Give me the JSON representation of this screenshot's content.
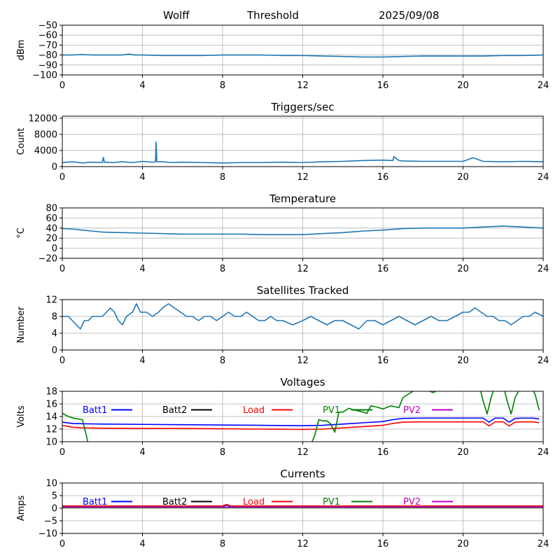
{
  "header": {
    "station": "Wolff",
    "mode": "Threshold",
    "date": "2025/09/08"
  },
  "chart_data": [
    {
      "id": "threshold",
      "type": "line",
      "title": "",
      "ylabel": "dBm",
      "xlim": [
        0,
        24
      ],
      "ylim": [
        -100,
        -50
      ],
      "xticks": [
        0,
        4,
        8,
        12,
        16,
        20,
        24
      ],
      "yticks": [
        -100,
        -90,
        -80,
        -70,
        -60,
        -50
      ],
      "ytick_labels": [
        "−100",
        "−90",
        "−80",
        "−70",
        "−60",
        "−50"
      ],
      "grid": true,
      "series": [
        {
          "color": "#1f77b4",
          "x": [
            0,
            0.5,
            1,
            1.5,
            2,
            2.5,
            3,
            3.3,
            3.6,
            4,
            5,
            6,
            7,
            8,
            9,
            10,
            11,
            12,
            13,
            14,
            15,
            16,
            17,
            18,
            19,
            20,
            21,
            22,
            23,
            24
          ],
          "y": [
            -80,
            -80,
            -79.5,
            -80,
            -80,
            -80,
            -80,
            -79,
            -80,
            -80,
            -80.5,
            -80.5,
            -80.5,
            -80,
            -80,
            -80,
            -80.5,
            -80.5,
            -81,
            -81.5,
            -82,
            -82,
            -81.5,
            -81,
            -81,
            -81,
            -81,
            -80.5,
            -80.5,
            -80
          ]
        }
      ]
    },
    {
      "id": "triggers",
      "type": "line",
      "title": "Triggers/sec",
      "ylabel": "Count",
      "xlim": [
        0,
        24
      ],
      "ylim": [
        0,
        12500
      ],
      "xticks": [
        0,
        4,
        8,
        12,
        16,
        20,
        24
      ],
      "yticks": [
        0,
        4000,
        8000,
        12000
      ],
      "ytick_labels": [
        "0",
        "4000",
        "8000",
        "12000"
      ],
      "grid": true,
      "series": [
        {
          "color": "#1f77b4",
          "x": [
            0,
            0.5,
            1,
            1.5,
            2,
            2.05,
            2.1,
            2.5,
            3,
            3.5,
            4,
            4.5,
            4.65,
            4.68,
            4.72,
            5,
            5.5,
            6,
            7,
            8,
            9,
            10,
            11,
            12,
            13,
            14,
            15,
            15.8,
            16,
            16.5,
            16.55,
            16.8,
            17,
            18,
            19,
            20,
            20.5,
            21,
            22,
            23,
            24
          ],
          "y": [
            1000,
            1200,
            900,
            1100,
            1000,
            2300,
            1100,
            1000,
            1200,
            1000,
            1300,
            1100,
            1200,
            6100,
            1200,
            1200,
            1000,
            1100,
            1000,
            900,
            1000,
            1000,
            1100,
            1000,
            1200,
            1300,
            1500,
            1600,
            1600,
            1500,
            2500,
            1500,
            1400,
            1300,
            1300,
            1300,
            2200,
            1300,
            1200,
            1300,
            1200
          ]
        }
      ]
    },
    {
      "id": "temperature",
      "type": "line",
      "title": "Temperature",
      "ylabel": "°C",
      "xlim": [
        0,
        24
      ],
      "ylim": [
        -20,
        80
      ],
      "xticks": [
        0,
        4,
        8,
        12,
        16,
        20,
        24
      ],
      "yticks": [
        -20,
        0,
        20,
        40,
        60,
        80
      ],
      "ytick_labels": [
        "−20",
        "0",
        "20",
        "40",
        "60",
        "80"
      ],
      "grid": true,
      "series": [
        {
          "color": "#1f77b4",
          "x": [
            0,
            0.5,
            1,
            1.5,
            2,
            3,
            4,
            5,
            6,
            7,
            8,
            9,
            10,
            11,
            12,
            13,
            14,
            15,
            16,
            17,
            18,
            19,
            20,
            21,
            22,
            23,
            24
          ],
          "y": [
            39,
            38,
            36,
            34,
            32,
            31,
            30,
            29,
            28,
            28,
            28,
            28,
            27,
            27,
            27,
            29,
            31,
            34,
            36,
            39,
            40,
            40,
            40,
            42,
            44,
            42,
            40
          ]
        }
      ]
    },
    {
      "id": "satellites",
      "type": "line",
      "title": "Satellites Tracked",
      "ylabel": "Number",
      "xlim": [
        0,
        24
      ],
      "ylim": [
        0,
        12
      ],
      "xticks": [
        0,
        4,
        8,
        12,
        16,
        20,
        24
      ],
      "yticks": [
        0,
        4,
        8,
        12
      ],
      "ytick_labels": [
        "0",
        "4",
        "8",
        "12"
      ],
      "grid": true,
      "series": [
        {
          "color": "#1f77b4",
          "x": [
            0,
            0.3,
            0.5,
            0.7,
            0.9,
            1.1,
            1.3,
            1.5,
            2,
            2.2,
            2.4,
            2.6,
            2.8,
            3,
            3.2,
            3.5,
            3.7,
            3.9,
            4.2,
            4.5,
            4.8,
            5,
            5.3,
            5.6,
            5.9,
            6.2,
            6.5,
            6.8,
            7.1,
            7.4,
            7.7,
            8,
            8.3,
            8.6,
            8.9,
            9.2,
            9.5,
            9.8,
            10.1,
            10.4,
            10.7,
            11,
            11.5,
            12,
            12.4,
            12.8,
            13.2,
            13.6,
            14,
            14.4,
            14.8,
            15.2,
            15.6,
            16,
            16.4,
            16.8,
            17.2,
            17.6,
            18,
            18.4,
            18.8,
            19.2,
            19.6,
            20,
            20.3,
            20.6,
            20.9,
            21.2,
            21.5,
            21.8,
            22.1,
            22.4,
            22.7,
            23,
            23.3,
            23.6,
            24
          ],
          "y": [
            8,
            8,
            7,
            6,
            5,
            7,
            7,
            8,
            8,
            9,
            10,
            9,
            7,
            6,
            8,
            9,
            11,
            9,
            9,
            8,
            9,
            10,
            11,
            10,
            9,
            8,
            8,
            7,
            8,
            8,
            7,
            8,
            9,
            8,
            8,
            9,
            8,
            7,
            7,
            8,
            7,
            7,
            6,
            7,
            8,
            7,
            6,
            7,
            7,
            6,
            5,
            7,
            7,
            6,
            7,
            8,
            7,
            6,
            7,
            8,
            7,
            7,
            8,
            9,
            9,
            10,
            9,
            8,
            8,
            7,
            7,
            6,
            7,
            8,
            8,
            9,
            8
          ]
        }
      ]
    },
    {
      "id": "voltages",
      "type": "line",
      "title": "Voltages",
      "ylabel": "Volts",
      "xlim": [
        0,
        24
      ],
      "ylim": [
        10,
        18
      ],
      "xticks": [
        0,
        4,
        8,
        12,
        16,
        20,
        24
      ],
      "yticks": [
        10,
        12,
        14,
        16,
        18
      ],
      "ytick_labels": [
        "10",
        "12",
        "14",
        "16",
        "18"
      ],
      "grid": true,
      "legend": [
        "Batt1",
        "Batt2",
        "Load",
        "PV1",
        "PV2"
      ],
      "series": [
        {
          "name": "Batt1",
          "color": "#0000ff",
          "x": [
            0,
            0.5,
            1,
            2,
            4,
            6,
            8,
            10,
            12,
            13,
            14,
            15,
            16,
            16.5,
            17,
            18,
            19,
            20,
            21,
            21.3,
            21.6,
            22,
            22.3,
            22.6,
            23,
            23.5,
            23.8
          ],
          "y": [
            13.1,
            12.9,
            12.85,
            12.8,
            12.75,
            12.7,
            12.65,
            12.6,
            12.55,
            12.6,
            12.8,
            13,
            13.2,
            13.5,
            13.7,
            13.75,
            13.75,
            13.75,
            13.75,
            13.1,
            13.75,
            13.75,
            13.1,
            13.7,
            13.75,
            13.75,
            13.6
          ]
        },
        {
          "name": "Load",
          "color": "#ff0000",
          "x": [
            0,
            0.5,
            1,
            2,
            4,
            6,
            8,
            10,
            12,
            13,
            14,
            15,
            16,
            16.5,
            17,
            18,
            19,
            20,
            21,
            21.3,
            21.6,
            22,
            22.3,
            22.6,
            23,
            23.5,
            23.8
          ],
          "y": [
            12.6,
            12.3,
            12.2,
            12.15,
            12.1,
            12.1,
            12.05,
            12.0,
            11.95,
            12.0,
            12.2,
            12.4,
            12.6,
            12.9,
            13.1,
            13.15,
            13.15,
            13.15,
            13.15,
            12.5,
            13.15,
            13.15,
            12.5,
            13.1,
            13.15,
            13.15,
            13.0
          ]
        },
        {
          "name": "PV1",
          "color": "#008000",
          "x": [
            0,
            0.3,
            0.6,
            0.8,
            1.0,
            1.2,
            1.3,
            12.4,
            12.6,
            12.8,
            13,
            13.2,
            13.4,
            13.6,
            13.8,
            14,
            14.3,
            14.6,
            14.9,
            15.2,
            15.4,
            15.7,
            16,
            16.4,
            16.8,
            17,
            17.5,
            18,
            18.5,
            19,
            19.5,
            20,
            20.5,
            20.8,
            21,
            21.2,
            21.4,
            21.6,
            21.8,
            22,
            22.2,
            22.4,
            22.6,
            22.8,
            23,
            23.2,
            23.4,
            23.6,
            23.8
          ],
          "y": [
            14.5,
            14,
            13.7,
            13.6,
            13.5,
            11,
            9.5,
            9.5,
            11,
            13.5,
            13.3,
            13.3,
            12.8,
            11.5,
            14.7,
            14.7,
            15.3,
            15,
            14.8,
            14.5,
            15.7,
            15.5,
            15.2,
            15.7,
            15.4,
            17,
            18,
            18.5,
            17.8,
            18.5,
            18.8,
            18.6,
            18.5,
            19,
            16.5,
            14.4,
            17,
            19,
            18.5,
            19,
            16.5,
            14.4,
            17,
            18.2,
            19,
            18.5,
            18.7,
            17.5,
            15
          ]
        }
      ]
    },
    {
      "id": "currents",
      "type": "line",
      "title": "Currents",
      "ylabel": "Amps",
      "xlim": [
        0,
        24
      ],
      "ylim": [
        -10,
        10
      ],
      "xticks": [
        0,
        4,
        8,
        12,
        16,
        20,
        24
      ],
      "yticks": [
        -10,
        -5,
        0,
        5,
        10
      ],
      "ytick_labels": [
        "−10",
        "−5",
        "0",
        "5",
        "10"
      ],
      "grid": true,
      "legend": [
        "Batt1",
        "Batt2",
        "Load",
        "PV1",
        "PV2"
      ],
      "series": [
        {
          "name": "Batt1",
          "color": "#0000ff",
          "x": [
            0,
            4,
            8,
            8.2,
            8.4,
            12,
            16,
            20,
            24
          ],
          "y": [
            0.6,
            0.6,
            0.6,
            1.2,
            0.6,
            0.6,
            0.6,
            0.6,
            0.6
          ]
        },
        {
          "name": "Load",
          "color": "#ff0000",
          "x": [
            0,
            4,
            8,
            8.2,
            8.4,
            12,
            16,
            20,
            24
          ],
          "y": [
            0.9,
            0.9,
            0.9,
            1.5,
            0.9,
            0.9,
            0.9,
            0.9,
            0.9
          ]
        },
        {
          "name": "PV1",
          "color": "#008000",
          "x": [
            0,
            4,
            8,
            12,
            16,
            20,
            24
          ],
          "y": [
            0.2,
            0.2,
            0.2,
            0.2,
            0.2,
            0.2,
            0.2
          ]
        },
        {
          "name": "PV2",
          "color": "#bf00bf",
          "x": [
            0,
            4,
            8,
            12,
            16,
            20,
            24
          ],
          "y": [
            0.4,
            0.4,
            0.4,
            0.4,
            0.4,
            0.4,
            0.4
          ]
        }
      ]
    }
  ],
  "legend_colors": {
    "Batt1": "#0000ff",
    "Batt2": "#000000",
    "Load": "#ff0000",
    "PV1": "#008000",
    "PV2": "#bf00bf"
  }
}
